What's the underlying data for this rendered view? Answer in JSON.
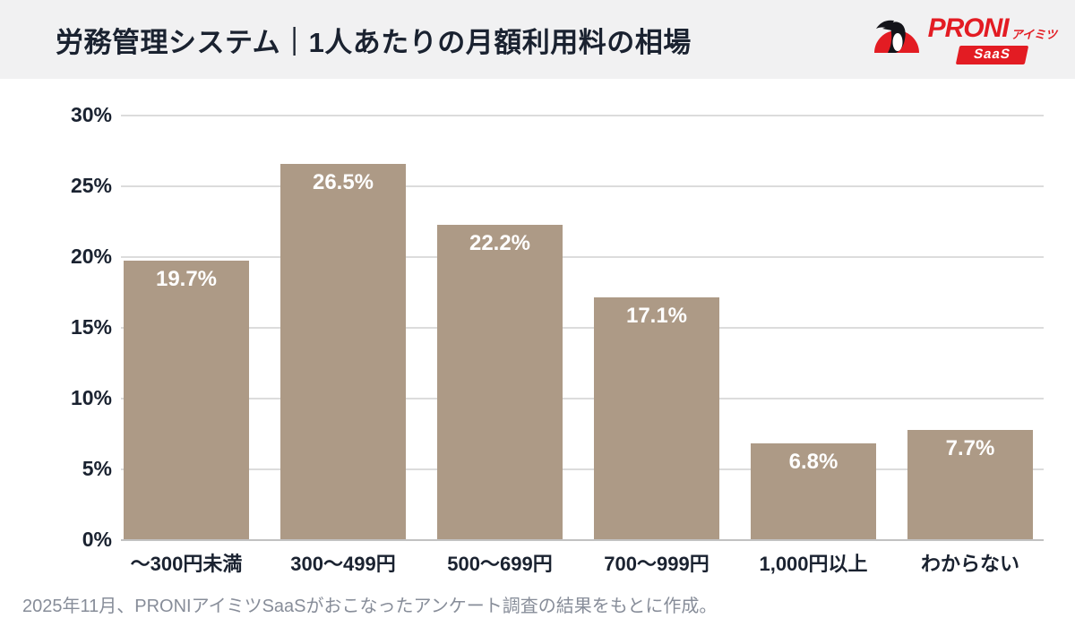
{
  "header": {
    "title": "労務管理システム｜1人あたりの月額利用料の相場",
    "logo": {
      "brand": "PRONI",
      "brand_suffix": "アイミツ",
      "sub": "SaaS"
    }
  },
  "chart_data": {
    "type": "bar",
    "title": "労務管理システム｜1人あたりの月額利用料の相場",
    "categories": [
      "～300円未満",
      "300～499円",
      "500～699円",
      "700～999円",
      "1,000円以上",
      "わからない"
    ],
    "values": [
      19.7,
      26.5,
      22.2,
      17.1,
      6.8,
      7.7
    ],
    "value_labels": [
      "19.7%",
      "26.5%",
      "22.2%",
      "17.1%",
      "6.8%",
      "7.7%"
    ],
    "xlabel": "",
    "ylabel": "",
    "ylim": [
      0,
      30
    ],
    "ytick_step": 5,
    "ytick_labels": [
      "0%",
      "5%",
      "10%",
      "15%",
      "20%",
      "25%",
      "30%"
    ],
    "grid": true,
    "legend": false,
    "bar_color": "#ad9a86"
  },
  "colors": {
    "brand_red": "#e31c23",
    "text_dark": "#1a2230",
    "bar": "#ad9a86",
    "header_bg": "#f1f1f2",
    "gridline": "#dcdcdc",
    "footer_text": "#878d99"
  },
  "footer": {
    "source": "2025年11月、PRONIアイミツSaaSがおこなったアンケート調査の結果をもとに作成。"
  }
}
